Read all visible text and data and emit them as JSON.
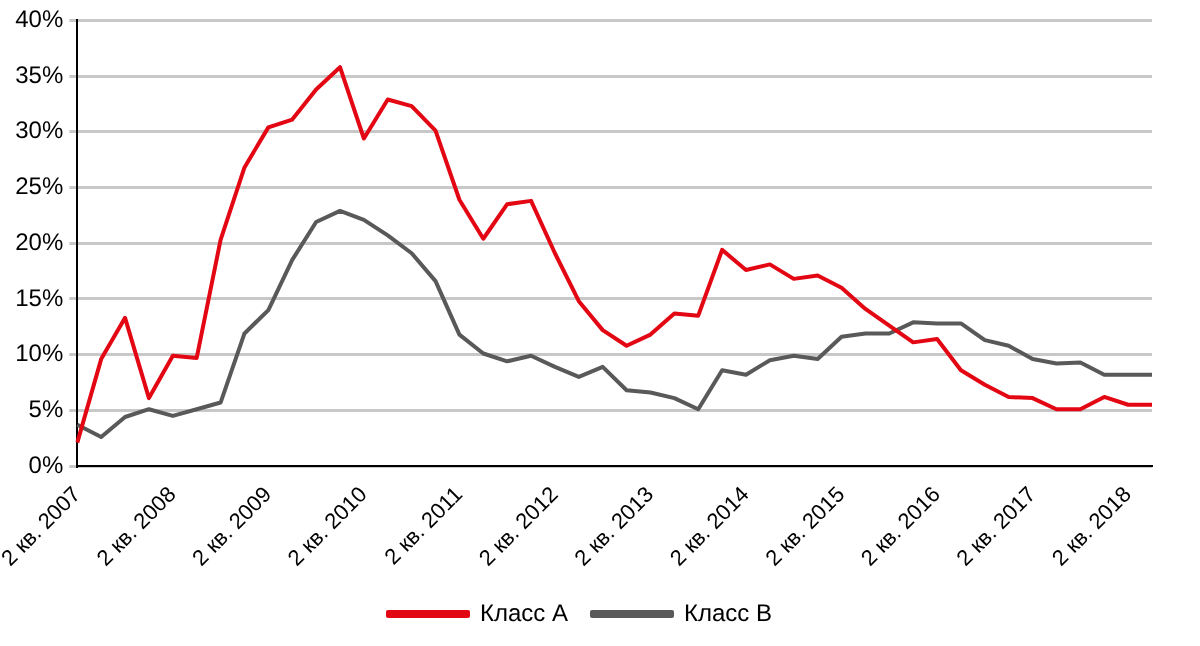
{
  "chart_data": {
    "type": "line",
    "categories": [
      "2 кв. 2007",
      null,
      null,
      null,
      "2 кв. 2008",
      null,
      null,
      null,
      "2 кв. 2009",
      null,
      null,
      null,
      "2 кв. 2010",
      null,
      null,
      null,
      "2 кв. 2011",
      null,
      null,
      null,
      "2 кв. 2012",
      null,
      null,
      null,
      "2 кв. 2013",
      null,
      null,
      null,
      "2 кв. 2014",
      null,
      null,
      null,
      "2 кв. 2015",
      null,
      null,
      null,
      "2 кв. 2016",
      null,
      null,
      null,
      "2 кв. 2017",
      null,
      null,
      null,
      "2 кв. 2018",
      null
    ],
    "series": [
      {
        "name": "Класс А",
        "color": "#e30613",
        "values": [
          2.1,
          9.6,
          13.3,
          6.1,
          9.9,
          9.7,
          20.3,
          26.8,
          30.4,
          31.1,
          33.8,
          35.8,
          29.4,
          32.9,
          32.3,
          30.1,
          23.9,
          20.4,
          23.5,
          23.8,
          19.1,
          14.8,
          12.2,
          10.8,
          11.8,
          13.7,
          13.5,
          19.4,
          17.6,
          18.1,
          16.8,
          17.1,
          16.0,
          14.1,
          12.6,
          11.1,
          11.4,
          8.6,
          7.3,
          6.2,
          6.1,
          5.1,
          5.1,
          6.2,
          5.5,
          5.5
        ]
      },
      {
        "name": "Класс В",
        "color": "#595959",
        "values": [
          3.7,
          2.6,
          4.4,
          5.1,
          4.5,
          5.1,
          5.7,
          11.9,
          14.0,
          18.5,
          21.9,
          22.9,
          22.1,
          20.7,
          19.1,
          16.6,
          11.8,
          10.1,
          9.4,
          9.9,
          8.9,
          8.0,
          8.9,
          6.8,
          6.6,
          6.1,
          5.1,
          8.6,
          8.2,
          9.5,
          9.9,
          9.6,
          11.6,
          11.9,
          11.9,
          12.9,
          12.8,
          12.8,
          11.3,
          10.8,
          9.6,
          9.2,
          9.3,
          8.2,
          8.2,
          8.2
        ]
      }
    ],
    "ylim": [
      0,
      40
    ],
    "yticks": [
      {
        "value": 0,
        "label": "0%"
      },
      {
        "value": 5,
        "label": "5%"
      },
      {
        "value": 10,
        "label": "10%"
      },
      {
        "value": 15,
        "label": "15%"
      },
      {
        "value": 20,
        "label": "20%"
      },
      {
        "value": 25,
        "label": "25%"
      },
      {
        "value": 30,
        "label": "30%"
      },
      {
        "value": 35,
        "label": "35%"
      },
      {
        "value": 40,
        "label": "40%"
      }
    ],
    "grid": "y",
    "legend": "bottom",
    "marker": "none",
    "line_style": "solid"
  }
}
